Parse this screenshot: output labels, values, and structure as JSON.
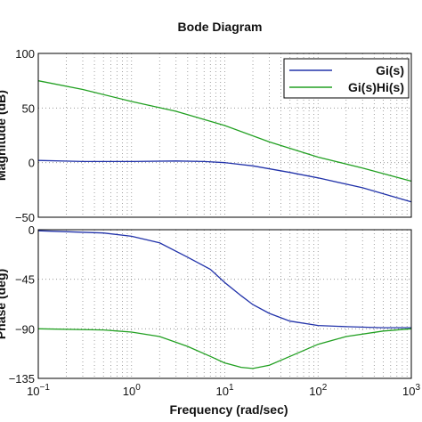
{
  "chart_data": {
    "type": "line",
    "title": "Bode Diagram",
    "xlabel": "Frequency  (rad/sec)",
    "xscale": "log",
    "xlim": [
      0.1,
      1000
    ],
    "x_ticks": [
      {
        "value": 0.1,
        "base": "10",
        "exp": "−1"
      },
      {
        "value": 1,
        "base": "10",
        "exp": "0"
      },
      {
        "value": 10,
        "base": "10",
        "exp": "1"
      },
      {
        "value": 100,
        "base": "10",
        "exp": "2"
      },
      {
        "value": 1000,
        "base": "10",
        "exp": "3"
      }
    ],
    "grid": true,
    "legend_position": "top-right",
    "legend": [
      "Gi(s)",
      "Gi(s)Hi(s)"
    ],
    "colors": {
      "Gi(s)": "#2233aa",
      "Gi(s)Hi(s)": "#22a022"
    },
    "panels": [
      {
        "name": "magnitude",
        "ylabel": "Magnitude (dB)",
        "ylim": [
          -50,
          100
        ],
        "yticks": [
          "100",
          "50",
          "0",
          "−50"
        ],
        "series": [
          {
            "name": "Gi(s)",
            "x": [
              0.1,
              0.3,
              1,
              3,
              6,
              10,
              20,
              50,
              100,
              300,
              1000
            ],
            "y": [
              2,
              1,
              1,
              1.5,
              1,
              0,
              -3,
              -9,
              -14,
              -23,
              -36
            ]
          },
          {
            "name": "Gi(s)Hi(s)",
            "x": [
              0.1,
              0.3,
              1,
              3,
              10,
              30,
              100,
              300,
              1000
            ],
            "y": [
              75,
              67,
              56,
              47,
              34,
              19,
              5,
              -5,
              -17
            ]
          }
        ]
      },
      {
        "name": "phase",
        "ylabel": "Phase (deg)",
        "ylim": [
          -135,
          0
        ],
        "yticks": [
          "0",
          "−45",
          "−90",
          "−135"
        ],
        "series": [
          {
            "name": "Gi(s)",
            "x": [
              0.1,
              0.5,
              1,
              2,
              4,
              7,
              10,
              15,
              20,
              30,
              50,
              100,
              200,
              500,
              1000
            ],
            "y": [
              -1,
              -3,
              -6,
              -12,
              -25,
              -36,
              -48,
              -60,
              -68,
              -76,
              -83,
              -87,
              -88,
              -89,
              -89
            ]
          },
          {
            "name": "Gi(s)Hi(s)",
            "x": [
              0.1,
              0.5,
              1,
              2,
              4,
              7,
              10,
              15,
              20,
              30,
              50,
              100,
              200,
              500,
              1000
            ],
            "y": [
              -90,
              -91,
              -93,
              -97,
              -106,
              -115,
              -121,
              -125,
              -126,
              -123,
              -115,
              -104,
              -97,
              -92,
              -90
            ]
          }
        ]
      }
    ]
  }
}
